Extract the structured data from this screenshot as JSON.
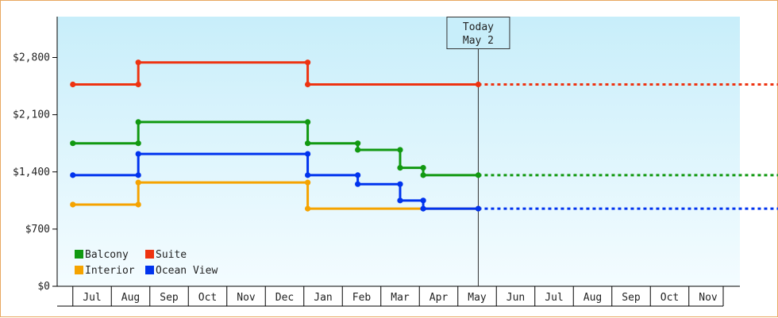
{
  "chart_data": {
    "type": "line",
    "step": true,
    "x_unit": "month",
    "x_ticks": [
      "Jul",
      "Aug",
      "Sep",
      "Oct",
      "Nov",
      "Dec",
      "Jan",
      "Feb",
      "Mar",
      "Apr",
      "May",
      "Jun",
      "Jul",
      "Aug",
      "Sep",
      "Oct",
      "Nov"
    ],
    "y_ticks": [
      "$0",
      "$700",
      "$1,400",
      "$2,100",
      "$2,800"
    ],
    "ylim": [
      0,
      3300
    ],
    "grid": false,
    "legend_position": "bottom-left",
    "today_marker": {
      "line1": "Today",
      "line2": "May 2",
      "x": 10.03
    },
    "series": [
      {
        "name": "Balcony",
        "color": "#119911",
        "points": [
          [
            -0.5,
            1750
          ],
          [
            1.2,
            1750
          ],
          [
            1.2,
            2010
          ],
          [
            5.6,
            2010
          ],
          [
            5.6,
            1750
          ],
          [
            6.9,
            1750
          ],
          [
            6.9,
            1670
          ],
          [
            8.0,
            1670
          ],
          [
            8.0,
            1450
          ],
          [
            8.6,
            1450
          ],
          [
            8.6,
            1360
          ],
          [
            10.03,
            1360
          ]
        ],
        "projection": [
          [
            10.03,
            1360
          ],
          [
            18.5,
            1360
          ]
        ]
      },
      {
        "name": "Suite",
        "color": "#ee3311",
        "points": [
          [
            -0.5,
            2470
          ],
          [
            1.2,
            2470
          ],
          [
            1.2,
            2740
          ],
          [
            5.6,
            2740
          ],
          [
            5.6,
            2470
          ],
          [
            10.03,
            2470
          ]
        ],
        "projection": [
          [
            10.03,
            2470
          ],
          [
            18.5,
            2470
          ]
        ]
      },
      {
        "name": "Interior",
        "color": "#f5a300",
        "points": [
          [
            -0.5,
            1000
          ],
          [
            1.2,
            1000
          ],
          [
            1.2,
            1270
          ],
          [
            5.6,
            1270
          ],
          [
            5.6,
            950
          ],
          [
            10.03,
            950
          ]
        ],
        "projection": []
      },
      {
        "name": "Ocean View",
        "color": "#0033ee",
        "points": [
          [
            -0.5,
            1360
          ],
          [
            1.2,
            1360
          ],
          [
            1.2,
            1620
          ],
          [
            5.6,
            1620
          ],
          [
            5.6,
            1360
          ],
          [
            6.9,
            1360
          ],
          [
            6.9,
            1250
          ],
          [
            8.0,
            1250
          ],
          [
            8.0,
            1050
          ],
          [
            8.6,
            1050
          ],
          [
            8.6,
            950
          ],
          [
            10.03,
            950
          ]
        ],
        "projection": [
          [
            10.03,
            950
          ],
          [
            18.5,
            950
          ]
        ]
      }
    ]
  }
}
